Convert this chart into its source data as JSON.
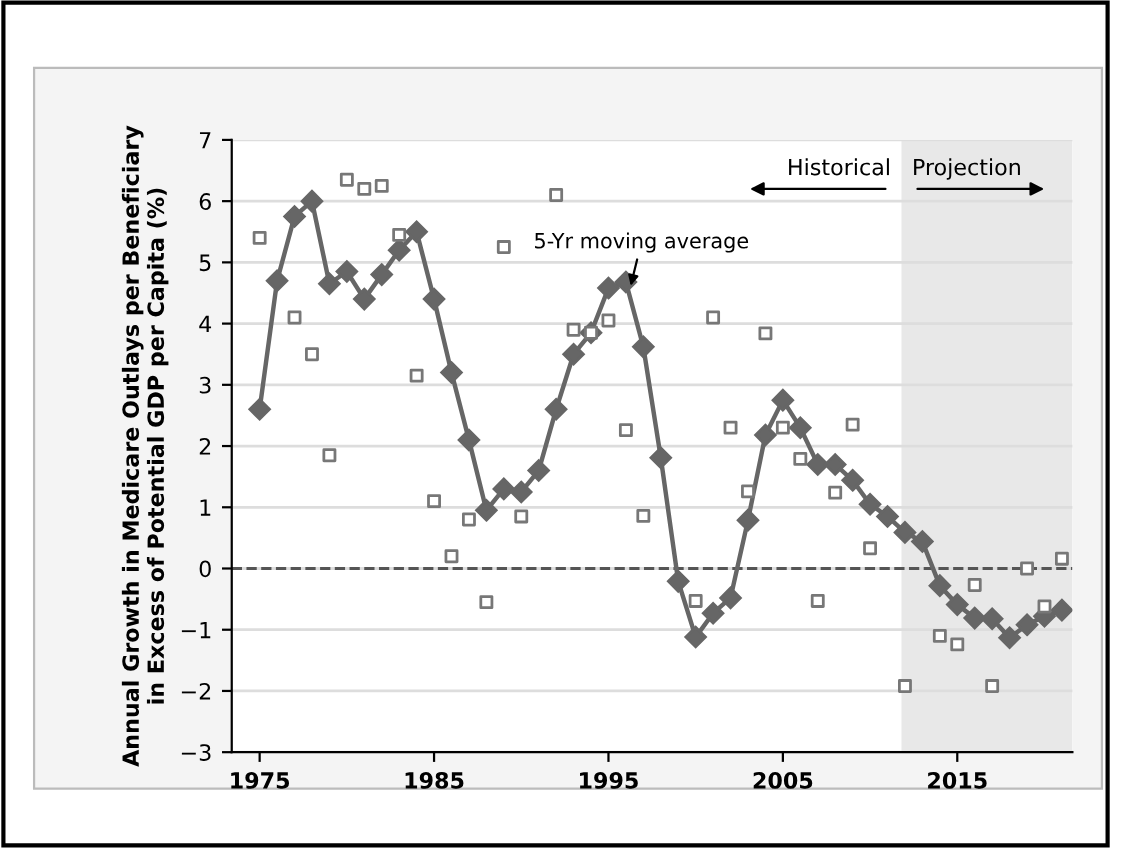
{
  "chart_data": {
    "type": "line",
    "ylabel": "Annual Growth in Medicare Outlays per Beneficiary\nin Excess of Potential GDP per Capita (%)",
    "x": [
      1975,
      1976,
      1977,
      1978,
      1979,
      1980,
      1981,
      1982,
      1983,
      1984,
      1985,
      1986,
      1987,
      1988,
      1989,
      1990,
      1991,
      1992,
      1993,
      1994,
      1995,
      1996,
      1997,
      1998,
      1999,
      2000,
      2001,
      2002,
      2003,
      2004,
      2005,
      2006,
      2007,
      2008,
      2009,
      2010,
      2011,
      2012,
      2013,
      2014,
      2015,
      2016,
      2017,
      2018,
      2019,
      2020,
      2021
    ],
    "series": [
      {
        "type": "scatter",
        "marker": "square",
        "color": "#777777",
        "values": [
          5.4,
          null,
          4.1,
          3.5,
          1.85,
          6.35,
          6.2,
          6.25,
          5.45,
          3.15,
          1.1,
          0.2,
          0.8,
          -0.55,
          5.25,
          0.85,
          null,
          6.1,
          3.9,
          3.85,
          4.05,
          2.26,
          0.86,
          null,
          null,
          -0.53,
          4.1,
          2.3,
          1.26,
          3.84,
          2.3,
          1.79,
          -0.53,
          1.24,
          2.35,
          0.33,
          null,
          -1.92,
          null,
          -1.1,
          -1.24,
          -0.27,
          -1.92,
          null,
          0.0,
          -0.62,
          0.16
        ]
      },
      {
        "marker": "diamond",
        "color": "#666666",
        "values": [
          2.6,
          4.7,
          5.75,
          6.0,
          4.65,
          4.85,
          4.4,
          4.8,
          5.2,
          5.5,
          4.4,
          3.2,
          2.1,
          0.95,
          1.3,
          1.25,
          1.6,
          2.6,
          3.5,
          3.85,
          4.58,
          4.68,
          3.62,
          1.81,
          -0.21,
          -1.12,
          -0.73,
          -0.48,
          0.79,
          2.18,
          2.75,
          2.3,
          1.7,
          1.7,
          1.44,
          1.05,
          0.85,
          0.59,
          0.44,
          -0.28,
          -0.59,
          -0.81,
          -0.82,
          -1.13,
          -0.92,
          -0.78,
          -0.68
        ]
      }
    ],
    "xlim": [
      1973.4,
      2021.6
    ],
    "xticks": [
      1975,
      1985,
      1995,
      2005,
      2015
    ],
    "ylim": [
      -3,
      7
    ],
    "yticks": [
      -3,
      -2,
      -1,
      0,
      1,
      2,
      3,
      4,
      5,
      6,
      7
    ],
    "grid": "y",
    "ref_lines": [
      {
        "axis": "y",
        "value": 0,
        "line_style": "dashed",
        "color": "#555555"
      }
    ],
    "bands": [
      {
        "axis": "x",
        "from": 2011.8,
        "to": 2021.6,
        "color": "#e8e8e8"
      }
    ],
    "annotations": [
      {
        "text": "5-Yr moving average",
        "x": 1996,
        "y": 4.68
      },
      "Historical",
      "Projection"
    ]
  }
}
